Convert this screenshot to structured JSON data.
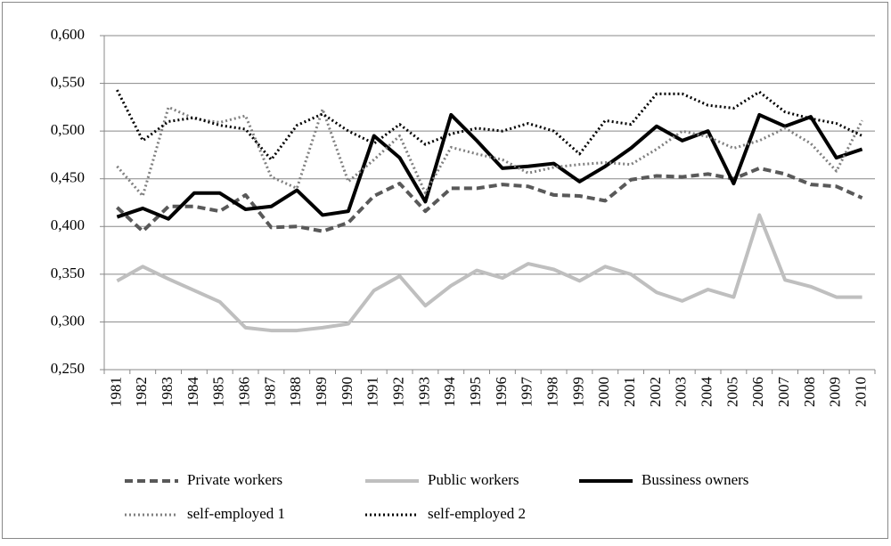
{
  "chart_data": {
    "type": "line",
    "categories": [
      "1981",
      "1982",
      "1983",
      "1984",
      "1985",
      "1986",
      "1987",
      "1988",
      "1989",
      "1990",
      "1991",
      "1992",
      "1993",
      "1994",
      "1995",
      "1996",
      "1997",
      "1998",
      "1999",
      "2000",
      "2001",
      "2002",
      "2003",
      "2004",
      "2005",
      "2006",
      "2007",
      "2008",
      "2009",
      "2010"
    ],
    "series": [
      {
        "name": "Private workers",
        "color": "#595959",
        "style": "dashed",
        "values": [
          0.42,
          0.395,
          0.421,
          0.421,
          0.416,
          0.433,
          0.399,
          0.4,
          0.395,
          0.404,
          0.432,
          0.445,
          0.416,
          0.44,
          0.44,
          0.444,
          0.442,
          0.433,
          0.432,
          0.427,
          0.449,
          0.453,
          0.452,
          0.455,
          0.45,
          0.461,
          0.455,
          0.444,
          0.442,
          0.43
        ]
      },
      {
        "name": "Public workers",
        "color": "#bfbfbf",
        "style": "solid",
        "values": [
          0.343,
          0.358,
          0.345,
          0.333,
          0.321,
          0.294,
          0.291,
          0.291,
          0.294,
          0.298,
          0.333,
          0.348,
          0.317,
          0.338,
          0.354,
          0.346,
          0.361,
          0.355,
          0.343,
          0.358,
          0.35,
          0.331,
          0.322,
          0.334,
          0.326,
          0.412,
          0.344,
          0.337,
          0.326,
          0.326
        ]
      },
      {
        "name": "Bussiness owners",
        "color": "#000000",
        "style": "solid",
        "values": [
          0.41,
          0.419,
          0.408,
          0.435,
          0.435,
          0.418,
          0.421,
          0.438,
          0.412,
          0.416,
          0.495,
          0.472,
          0.426,
          0.517,
          0.49,
          0.461,
          0.463,
          0.466,
          0.447,
          0.463,
          0.482,
          0.505,
          0.49,
          0.5,
          0.445,
          0.517,
          0.505,
          0.515,
          0.472,
          0.481
        ]
      },
      {
        "name": "self-employed 1",
        "color": "#808080",
        "style": "dotted",
        "values": [
          0.463,
          0.432,
          0.525,
          0.513,
          0.509,
          0.516,
          0.452,
          0.44,
          0.523,
          0.447,
          0.47,
          0.495,
          0.435,
          0.483,
          0.476,
          0.47,
          0.456,
          0.462,
          0.465,
          0.467,
          0.465,
          0.481,
          0.5,
          0.494,
          0.482,
          0.49,
          0.503,
          0.487,
          0.458,
          0.511
        ]
      },
      {
        "name": "self-employed 2",
        "color": "#000000",
        "style": "dotted",
        "values": [
          0.543,
          0.49,
          0.51,
          0.514,
          0.506,
          0.502,
          0.47,
          0.506,
          0.518,
          0.5,
          0.487,
          0.507,
          0.486,
          0.497,
          0.503,
          0.5,
          0.508,
          0.5,
          0.476,
          0.511,
          0.507,
          0.539,
          0.539,
          0.527,
          0.524,
          0.541,
          0.52,
          0.513,
          0.508,
          0.495
        ]
      }
    ],
    "ylim": [
      0.25,
      0.6
    ],
    "yticks": [
      {
        "value": 0.25,
        "label": "0,250"
      },
      {
        "value": 0.3,
        "label": "0,300"
      },
      {
        "value": 0.35,
        "label": "0,350"
      },
      {
        "value": 0.4,
        "label": "0,400"
      },
      {
        "value": 0.45,
        "label": "0,450"
      },
      {
        "value": 0.5,
        "label": "0,500"
      },
      {
        "value": 0.55,
        "label": "0,550"
      },
      {
        "value": 0.6,
        "label": "0,600"
      }
    ],
    "grid": true,
    "legend": "bottom"
  }
}
